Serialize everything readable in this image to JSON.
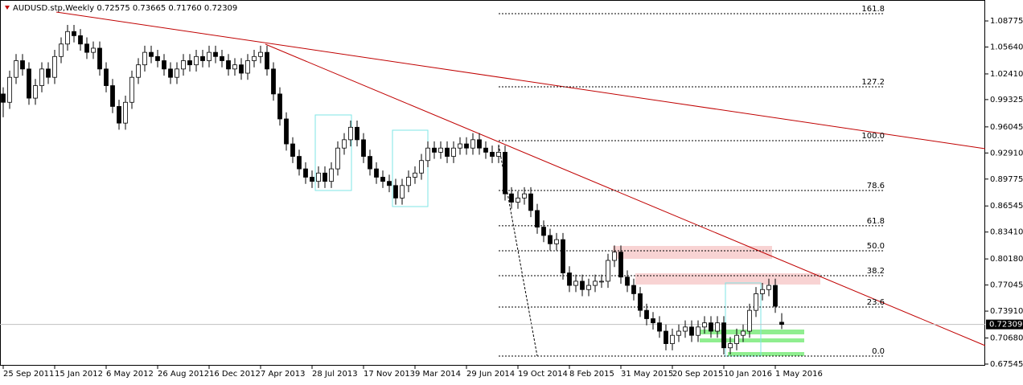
{
  "chart_data": {
    "type": "candlestick",
    "title": "AUDUSD.stp,Weekly  0.72575 0.73665 0.71760 0.72309",
    "categories": [
      "25 Sep 2011",
      null,
      null,
      null,
      null,
      null,
      null,
      null,
      "15 Jan 2012",
      null,
      null,
      null,
      null,
      null,
      null,
      null,
      "6 May 2012",
      null,
      null,
      null,
      null,
      null,
      null,
      null,
      "26 Aug 2012",
      null,
      null,
      null,
      null,
      null,
      null,
      null,
      "16 Dec 2012",
      null,
      null,
      null,
      null,
      null,
      null,
      null,
      "7 Apr 2013",
      null,
      null,
      null,
      null,
      null,
      null,
      null,
      "28 Jul 2013",
      null,
      null,
      null,
      null,
      null,
      null,
      null,
      "17 Nov 2013",
      null,
      null,
      null,
      null,
      null,
      null,
      null,
      "9 Mar 2014",
      null,
      null,
      null,
      null,
      null,
      null,
      null,
      "29 Jun 2014",
      null,
      null,
      null,
      null,
      null,
      null,
      null,
      "19 Oct 2014",
      null,
      null,
      null,
      null,
      null,
      null,
      null,
      "8 Feb 2015",
      null,
      null,
      null,
      null,
      null,
      null,
      null,
      "31 May 2015",
      null,
      null,
      null,
      null,
      null,
      null,
      null,
      "20 Sep 2015",
      null,
      null,
      null,
      null,
      null,
      null,
      null,
      "10 Jan 2016",
      null,
      null,
      null,
      null,
      null,
      null,
      null,
      "1 May 2016",
      null
    ],
    "candles": [
      [
        1.0,
        1.008,
        0.972,
        0.99
      ],
      [
        0.99,
        1.028,
        0.982,
        1.02
      ],
      [
        1.02,
        1.048,
        1.012,
        1.04
      ],
      [
        1.04,
        1.048,
        1.022,
        1.03
      ],
      [
        1.03,
        1.038,
        0.987,
        0.995
      ],
      [
        0.995,
        1.018,
        0.987,
        1.01
      ],
      [
        1.01,
        1.038,
        1.002,
        1.03
      ],
      [
        1.03,
        1.038,
        1.012,
        1.02
      ],
      [
        1.02,
        1.053,
        1.012,
        1.045
      ],
      [
        1.045,
        1.068,
        1.037,
        1.06
      ],
      [
        1.06,
        1.083,
        1.052,
        1.075
      ],
      [
        1.075,
        1.083,
        1.062,
        1.07
      ],
      [
        1.07,
        1.078,
        1.052,
        1.06
      ],
      [
        1.06,
        1.068,
        1.042,
        1.05
      ],
      [
        1.05,
        1.063,
        1.042,
        1.055
      ],
      [
        1.055,
        1.063,
        1.022,
        1.03
      ],
      [
        1.03,
        1.038,
        1.002,
        1.01
      ],
      [
        1.01,
        1.018,
        0.977,
        0.985
      ],
      [
        0.985,
        0.993,
        0.957,
        0.965
      ],
      [
        0.965,
        0.998,
        0.957,
        0.99
      ],
      [
        0.99,
        1.028,
        0.982,
        1.02
      ],
      [
        1.02,
        1.043,
        1.012,
        1.035
      ],
      [
        1.035,
        1.058,
        1.027,
        1.05
      ],
      [
        1.05,
        1.058,
        1.037,
        1.045
      ],
      [
        1.045,
        1.053,
        1.032,
        1.04
      ],
      [
        1.04,
        1.048,
        1.022,
        1.03
      ],
      [
        1.03,
        1.038,
        1.012,
        1.02
      ],
      [
        1.02,
        1.038,
        1.012,
        1.03
      ],
      [
        1.03,
        1.048,
        1.022,
        1.04
      ],
      [
        1.04,
        1.048,
        1.027,
        1.035
      ],
      [
        1.035,
        1.053,
        1.027,
        1.045
      ],
      [
        1.045,
        1.053,
        1.032,
        1.04
      ],
      [
        1.04,
        1.058,
        1.032,
        1.05
      ],
      [
        1.05,
        1.058,
        1.037,
        1.045
      ],
      [
        1.045,
        1.053,
        1.032,
        1.04
      ],
      [
        1.04,
        1.048,
        1.022,
        1.03
      ],
      [
        1.03,
        1.043,
        1.022,
        1.035
      ],
      [
        1.035,
        1.043,
        1.017,
        1.025
      ],
      [
        1.025,
        1.048,
        1.017,
        1.04
      ],
      [
        1.04,
        1.053,
        1.032,
        1.045
      ],
      [
        1.045,
        1.058,
        1.037,
        1.05
      ],
      [
        1.05,
        1.058,
        1.022,
        1.03
      ],
      [
        1.03,
        1.038,
        0.992,
        1.0
      ],
      [
        1.0,
        1.008,
        0.962,
        0.97
      ],
      [
        0.97,
        0.978,
        0.932,
        0.94
      ],
      [
        0.94,
        0.948,
        0.917,
        0.925
      ],
      [
        0.925,
        0.933,
        0.902,
        0.91
      ],
      [
        0.91,
        0.918,
        0.892,
        0.9
      ],
      [
        0.9,
        0.908,
        0.887,
        0.895
      ],
      [
        0.895,
        0.913,
        0.887,
        0.905
      ],
      [
        0.905,
        0.913,
        0.887,
        0.895
      ],
      [
        0.895,
        0.918,
        0.887,
        0.91
      ],
      [
        0.91,
        0.943,
        0.902,
        0.935
      ],
      [
        0.935,
        0.953,
        0.927,
        0.945
      ],
      [
        0.945,
        0.968,
        0.937,
        0.96
      ],
      [
        0.96,
        0.968,
        0.937,
        0.945
      ],
      [
        0.945,
        0.953,
        0.917,
        0.925
      ],
      [
        0.925,
        0.933,
        0.902,
        0.91
      ],
      [
        0.91,
        0.918,
        0.892,
        0.9
      ],
      [
        0.9,
        0.908,
        0.887,
        0.895
      ],
      [
        0.895,
        0.903,
        0.882,
        0.89
      ],
      [
        0.89,
        0.898,
        0.867,
        0.875
      ],
      [
        0.875,
        0.898,
        0.867,
        0.89
      ],
      [
        0.89,
        0.908,
        0.882,
        0.9
      ],
      [
        0.9,
        0.913,
        0.892,
        0.905
      ],
      [
        0.905,
        0.928,
        0.897,
        0.92
      ],
      [
        0.92,
        0.943,
        0.912,
        0.935
      ],
      [
        0.935,
        0.943,
        0.922,
        0.93
      ],
      [
        0.93,
        0.943,
        0.922,
        0.935
      ],
      [
        0.935,
        0.943,
        0.917,
        0.925
      ],
      [
        0.925,
        0.943,
        0.917,
        0.935
      ],
      [
        0.935,
        0.948,
        0.927,
        0.94
      ],
      [
        0.94,
        0.948,
        0.927,
        0.935
      ],
      [
        0.935,
        0.953,
        0.927,
        0.945
      ],
      [
        0.945,
        0.953,
        0.927,
        0.935
      ],
      [
        0.935,
        0.943,
        0.922,
        0.93
      ],
      [
        0.93,
        0.938,
        0.917,
        0.925
      ],
      [
        0.925,
        0.938,
        0.917,
        0.93
      ],
      [
        0.93,
        0.938,
        0.872,
        0.88
      ],
      [
        0.88,
        0.888,
        0.862,
        0.87
      ],
      [
        0.87,
        0.883,
        0.862,
        0.875
      ],
      [
        0.875,
        0.888,
        0.867,
        0.88
      ],
      [
        0.88,
        0.888,
        0.852,
        0.86
      ],
      [
        0.86,
        0.868,
        0.832,
        0.84
      ],
      [
        0.84,
        0.848,
        0.822,
        0.83
      ],
      [
        0.83,
        0.838,
        0.812,
        0.82
      ],
      [
        0.82,
        0.833,
        0.812,
        0.825
      ],
      [
        0.825,
        0.833,
        0.777,
        0.785
      ],
      [
        0.785,
        0.793,
        0.762,
        0.77
      ],
      [
        0.77,
        0.783,
        0.762,
        0.775
      ],
      [
        0.775,
        0.783,
        0.757,
        0.765
      ],
      [
        0.765,
        0.778,
        0.757,
        0.77
      ],
      [
        0.77,
        0.783,
        0.762,
        0.775
      ],
      [
        0.775,
        0.783,
        0.767,
        0.775
      ],
      [
        0.775,
        0.808,
        0.767,
        0.8
      ],
      [
        0.8,
        0.818,
        0.792,
        0.81
      ],
      [
        0.81,
        0.818,
        0.772,
        0.78
      ],
      [
        0.78,
        0.788,
        0.762,
        0.77
      ],
      [
        0.77,
        0.778,
        0.752,
        0.76
      ],
      [
        0.76,
        0.768,
        0.732,
        0.74
      ],
      [
        0.74,
        0.748,
        0.722,
        0.73
      ],
      [
        0.73,
        0.738,
        0.717,
        0.725
      ],
      [
        0.725,
        0.733,
        0.707,
        0.715
      ],
      [
        0.715,
        0.723,
        0.692,
        0.7
      ],
      [
        0.7,
        0.718,
        0.692,
        0.71
      ],
      [
        0.71,
        0.723,
        0.702,
        0.715
      ],
      [
        0.715,
        0.728,
        0.707,
        0.72
      ],
      [
        0.72,
        0.728,
        0.702,
        0.71
      ],
      [
        0.71,
        0.728,
        0.702,
        0.72
      ],
      [
        0.72,
        0.733,
        0.712,
        0.725
      ],
      [
        0.725,
        0.733,
        0.707,
        0.715
      ],
      [
        0.715,
        0.733,
        0.707,
        0.725
      ],
      [
        0.725,
        0.733,
        0.687,
        0.695
      ],
      [
        0.695,
        0.708,
        0.687,
        0.7
      ],
      [
        0.7,
        0.718,
        0.692,
        0.71
      ],
      [
        0.71,
        0.723,
        0.702,
        0.715
      ],
      [
        0.715,
        0.748,
        0.707,
        0.74
      ],
      [
        0.74,
        0.768,
        0.732,
        0.76
      ],
      [
        0.76,
        0.773,
        0.752,
        0.765
      ],
      [
        0.765,
        0.778,
        0.757,
        0.77
      ],
      [
        0.77,
        0.778,
        0.737,
        0.745
      ],
      [
        0.72575,
        0.73665,
        0.7176,
        0.72309
      ]
    ],
    "ylim": [
      0.6735,
      1.1129
    ],
    "yticks": [
      1.08775,
      {
        "value": 1.0564,
        "label": "1.05640"
      },
      {
        "value": 1.0241,
        "label": "1.02410"
      },
      0.99325,
      0.96045,
      {
        "value": 0.9291,
        "label": "0.92910"
      },
      0.89775,
      0.86545,
      {
        "value": 0.8341,
        "label": "0.83410"
      },
      {
        "value": 0.8018,
        "label": "0.80180"
      },
      0.77045,
      {
        "value": 0.7391,
        "label": "0.73910"
      },
      {
        "value": 0.7068,
        "label": "0.70680"
      },
      0.67545
    ],
    "last_price": {
      "value": 0.72309,
      "label": "0.72309"
    },
    "fib_levels": [
      {
        "label": "161.8",
        "price": 1.0965
      },
      {
        "label": "127.2",
        "price": 1.0086
      },
      {
        "label": "100.0",
        "price": 0.9439
      },
      {
        "label": "78.6",
        "price": 0.884
      },
      {
        "label": "61.8",
        "price": 0.8416
      },
      {
        "label": "50.0",
        "price": 0.8116
      },
      {
        "label": "38.2",
        "price": 0.7817
      },
      {
        "label": "23.6",
        "price": 0.744
      },
      {
        "label": "0.0",
        "price": 0.6851
      }
    ]
  }
}
